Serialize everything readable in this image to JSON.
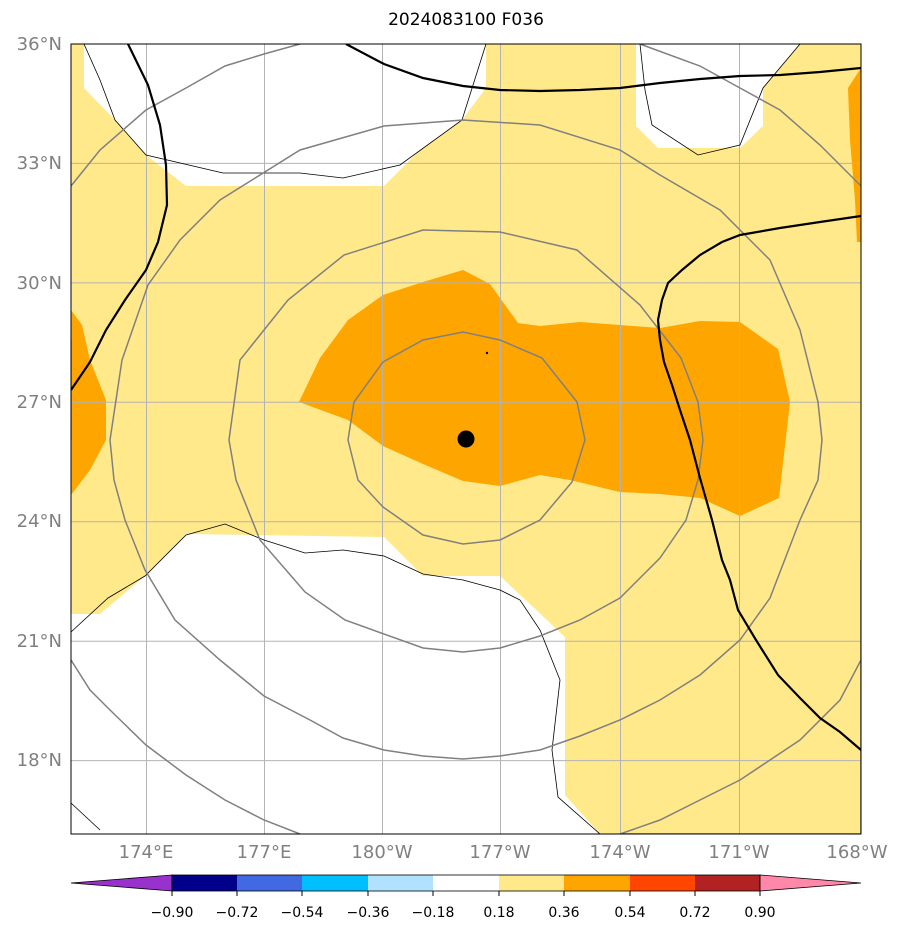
{
  "title": "2024083100 F036",
  "lat_ticks": [
    "36°N",
    "33°N",
    "30°N",
    "27°N",
    "24°N",
    "21°N",
    "18°N"
  ],
  "lon_ticks": [
    "174°E",
    "177°E",
    "180°W",
    "177°W",
    "174°W",
    "171°W",
    "168°W"
  ],
  "colorbar": {
    "colors": [
      "#9932cc",
      "#00008b",
      "#4169e1",
      "#00bfff",
      "#b0e2ff",
      "#ffffff",
      "#ffe98a",
      "#ffa500",
      "#ff4500",
      "#b22222",
      "#ff88aa"
    ],
    "labels": [
      "−0.90",
      "−0.72",
      "−0.54",
      "−0.36",
      "−0.18",
      "0.18",
      "0.36",
      "0.54",
      "0.72",
      "0.90"
    ]
  },
  "fill_colors": {
    "light": "#ffe98a",
    "orange": "#ffa500"
  },
  "center_marker": "storm-center-dot"
}
